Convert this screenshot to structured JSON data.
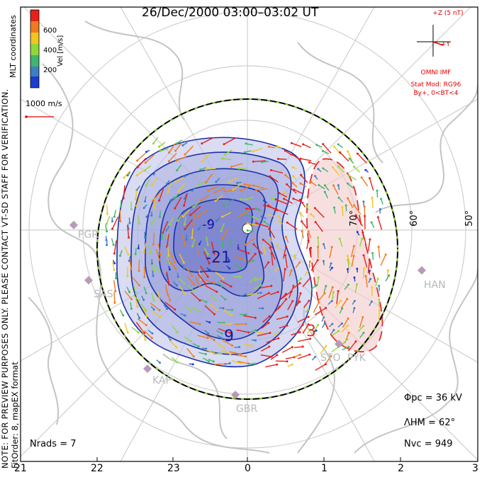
{
  "title": "26/Dec/2000 03:00–03:02 UT",
  "left_notes": {
    "coords": "MLT coordinates",
    "preview": "NOTE: FOR PREVIEW PURPOSES ONLY. PLEASE CONTACT VT-SD STAFF FOR VERIFICATION.",
    "fit": "FitOrder: 8, mapEX format"
  },
  "colorbar": {
    "label": "Vel [m/s]",
    "ticks": [
      "600",
      "400",
      "200"
    ],
    "colors": [
      "#e8201a",
      "#f07a1e",
      "#f2c51f",
      "#8fd83a",
      "#3fb56f",
      "#3d7fc2",
      "#1c3ccf"
    ]
  },
  "scale_label": "1000 m/s",
  "imf": {
    "scale": "+Z (5 nT)",
    "y_axis": "+Y",
    "source": "OMNI IMF",
    "model": "Stat Mod: RG96",
    "condition": "By+, 0<BT<4"
  },
  "stats": {
    "phi_pc": "Φpc = 36 kV",
    "lambda_hm": "ΛHM = 62°",
    "n_vc": "Nvc = 949",
    "n_rads": "Nrads = 7"
  },
  "mlt_ticks": [
    "21",
    "22",
    "23",
    "0",
    "1",
    "2",
    "3"
  ],
  "lat_labels": [
    "70°",
    "60°",
    "50°"
  ],
  "sites": [
    "PGR",
    "SAS",
    "KAP",
    "GBR",
    "STO",
    "PYK",
    "HAN"
  ],
  "contour_labels": [
    "-21",
    "9",
    "3",
    "-9"
  ],
  "colors": {
    "neg": "#1a2fa8",
    "pos": "#e03030",
    "hmb": "#7ed321",
    "grid": "#cccccc"
  }
}
